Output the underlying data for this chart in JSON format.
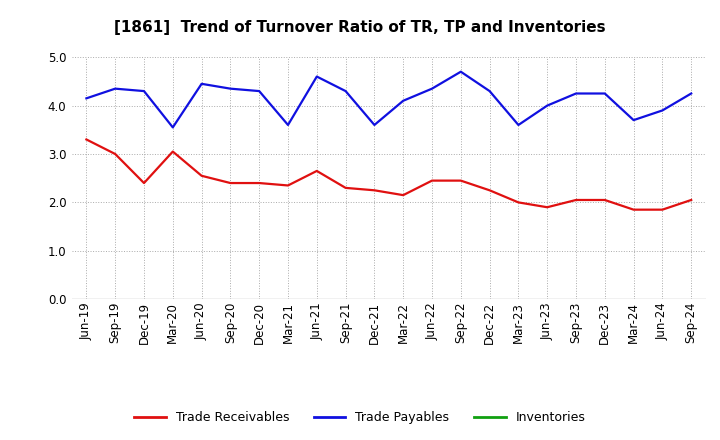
{
  "title": "[1861]  Trend of Turnover Ratio of TR, TP and Inventories",
  "labels": [
    "Jun-19",
    "Sep-19",
    "Dec-19",
    "Mar-20",
    "Jun-20",
    "Sep-20",
    "Dec-20",
    "Mar-21",
    "Jun-21",
    "Sep-21",
    "Dec-21",
    "Mar-22",
    "Jun-22",
    "Sep-22",
    "Dec-22",
    "Mar-23",
    "Jun-23",
    "Sep-23",
    "Dec-23",
    "Mar-24",
    "Jun-24",
    "Sep-24"
  ],
  "trade_receivables": [
    3.3,
    3.0,
    2.4,
    3.05,
    2.55,
    2.4,
    2.4,
    2.35,
    2.65,
    2.3,
    2.25,
    2.15,
    2.45,
    2.45,
    2.25,
    2.0,
    1.9,
    2.05,
    2.05,
    1.85,
    1.85,
    2.05
  ],
  "trade_payables": [
    4.15,
    4.35,
    4.3,
    3.55,
    4.45,
    4.35,
    4.3,
    3.6,
    4.6,
    4.3,
    3.6,
    4.1,
    4.35,
    4.7,
    4.3,
    3.6,
    4.0,
    4.25,
    4.25,
    3.7,
    3.9,
    4.25
  ],
  "inventories": [
    null,
    null,
    null,
    null,
    null,
    null,
    null,
    null,
    null,
    null,
    null,
    null,
    null,
    null,
    null,
    null,
    null,
    null,
    null,
    null,
    null,
    null
  ],
  "tr_color": "#e01010",
  "tp_color": "#1010e0",
  "inv_color": "#10a010",
  "ylim": [
    0.0,
    5.0
  ],
  "yticks": [
    0.0,
    1.0,
    2.0,
    3.0,
    4.0,
    5.0
  ],
  "grid_color": "#aaaaaa",
  "bg_color": "#ffffff",
  "legend_labels": [
    "Trade Receivables",
    "Trade Payables",
    "Inventories"
  ],
  "title_fontsize": 11,
  "tick_fontsize": 8.5,
  "legend_fontsize": 9
}
